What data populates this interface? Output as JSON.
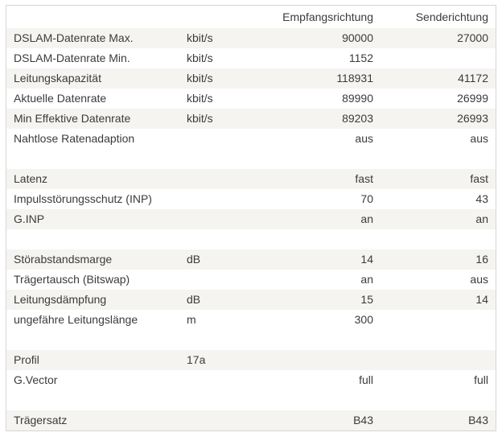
{
  "colors": {
    "page_background": "#ffffff",
    "table_border": "#d6d6d6",
    "row_stripe": "#f5f4f1",
    "text": "#3b3b3b"
  },
  "table": {
    "header": {
      "rx_label": "Empfangsrichtung",
      "tx_label": "Senderichtung"
    },
    "rows": [
      {
        "label": "DSLAM-Datenrate Max.",
        "unit": "kbit/s",
        "rx": "90000",
        "tx": "27000"
      },
      {
        "label": "DSLAM-Datenrate Min.",
        "unit": "kbit/s",
        "rx": "1152",
        "tx": ""
      },
      {
        "label": "Leitungskapazität",
        "unit": "kbit/s",
        "rx": "118931",
        "tx": "41172"
      },
      {
        "label": "Aktuelle Datenrate",
        "unit": "kbit/s",
        "rx": "89990",
        "tx": "26999"
      },
      {
        "label": "Min Effektive Datenrate",
        "unit": "kbit/s",
        "rx": "89203",
        "tx": "26993"
      },
      {
        "label": "Nahtlose Ratenadaption",
        "unit": "",
        "rx": "aus",
        "tx": "aus"
      },
      {
        "separator": true
      },
      {
        "label": "Latenz",
        "unit": "",
        "rx": "fast",
        "tx": "fast"
      },
      {
        "label": "Impulsstörungsschutz (INP)",
        "unit": "",
        "rx": "70",
        "tx": "43"
      },
      {
        "label": "G.INP",
        "unit": "",
        "rx": "an",
        "tx": "an"
      },
      {
        "separator": true
      },
      {
        "label": "Störabstandsmarge",
        "unit": "dB",
        "rx": "14",
        "tx": "16"
      },
      {
        "label": "Trägertausch (Bitswap)",
        "unit": "",
        "rx": "an",
        "tx": "aus"
      },
      {
        "label": "Leitungsdämpfung",
        "unit": "dB",
        "rx": "15",
        "tx": "14"
      },
      {
        "label": "ungefähre Leitungslänge",
        "unit": "m",
        "rx": "300",
        "tx": ""
      },
      {
        "separator": true
      },
      {
        "label": "Profil",
        "unit": "17a",
        "rx": "",
        "tx": ""
      },
      {
        "label": "G.Vector",
        "unit": "",
        "rx": "full",
        "tx": "full"
      },
      {
        "separator": true
      },
      {
        "label": "Trägersatz",
        "unit": "",
        "rx": "B43",
        "tx": "B43"
      }
    ]
  }
}
